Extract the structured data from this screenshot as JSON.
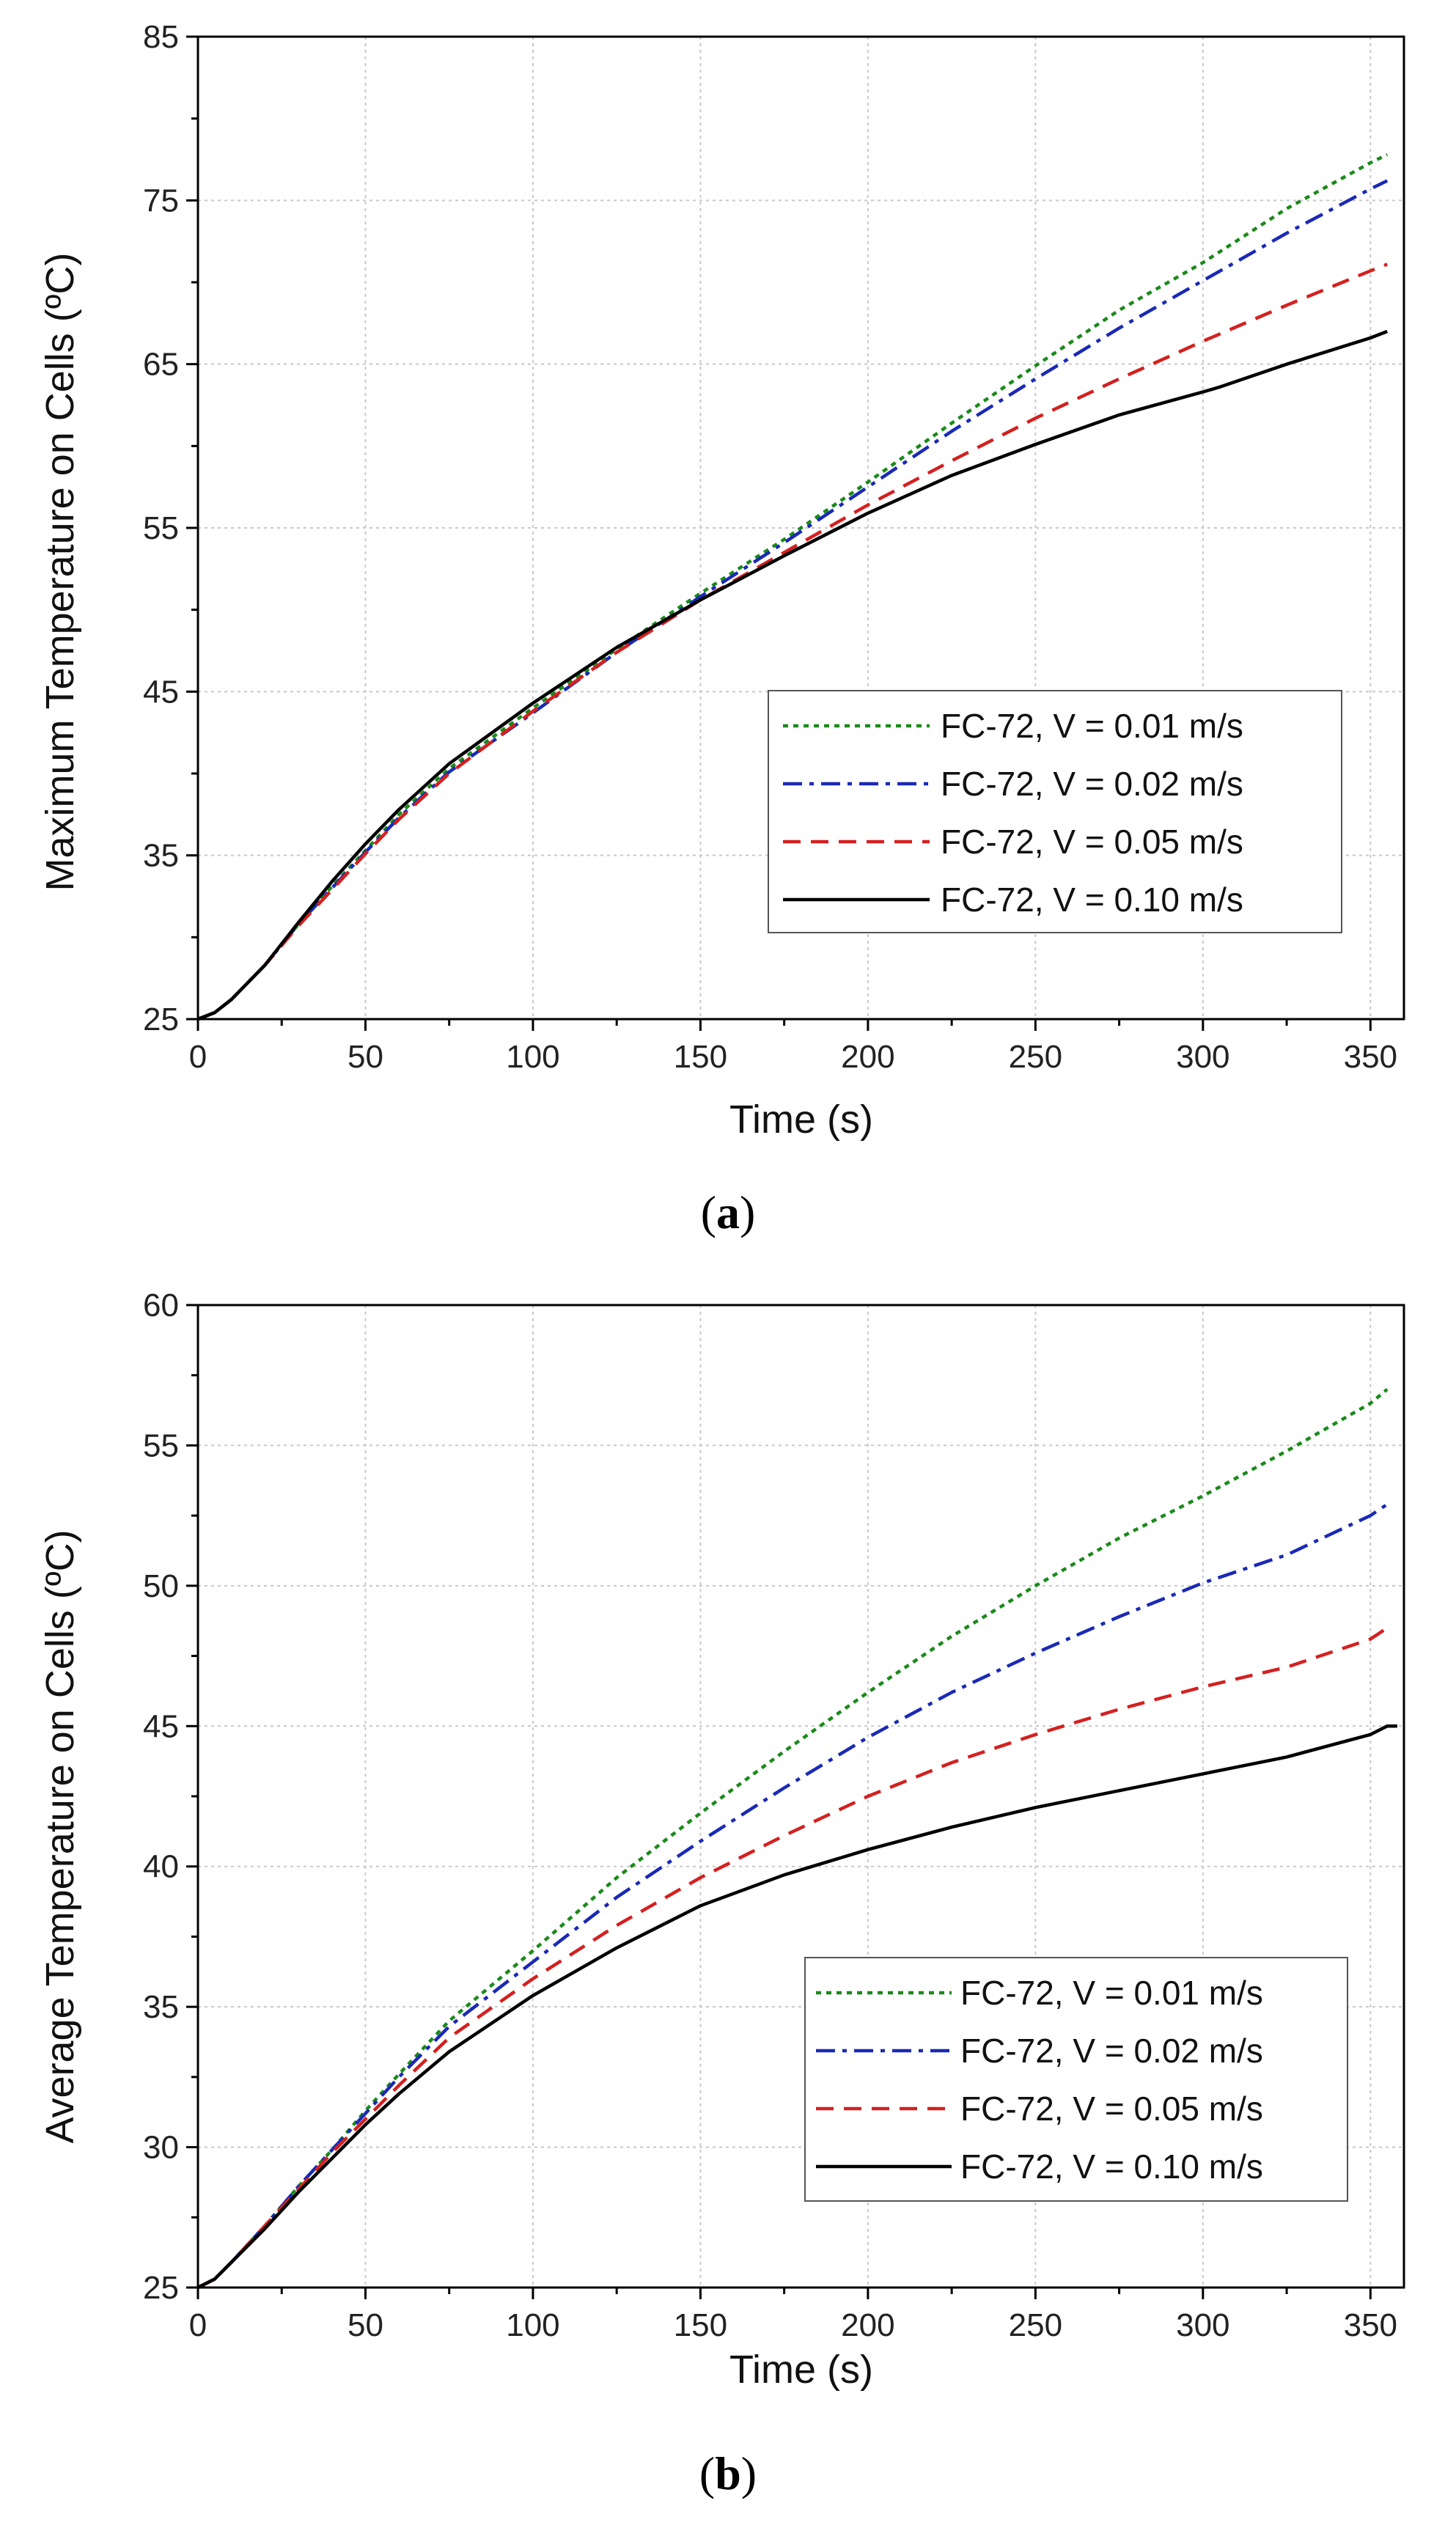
{
  "chart_data": [
    {
      "type": "line",
      "panel_label": "a",
      "xlabel": "Time (s)",
      "ylabel": "Maximum Temperature on Cells (ºC)",
      "xlim": [
        0,
        360
      ],
      "ylim": [
        25,
        85
      ],
      "xticks": [
        0,
        50,
        100,
        150,
        200,
        250,
        300,
        350
      ],
      "yticks": [
        25,
        35,
        45,
        55,
        65,
        75,
        85
      ],
      "grid": true,
      "legend_position": "lower-right",
      "series": [
        {
          "name": "FC-72, V = 0.01 m/s",
          "color": "#1a8a1a",
          "dash": "dotted",
          "x": [
            0,
            5,
            10,
            20,
            30,
            40,
            50,
            60,
            75,
            100,
            125,
            150,
            175,
            200,
            225,
            250,
            275,
            300,
            325,
            350,
            355
          ],
          "y": [
            25,
            25.4,
            26.2,
            28.3,
            30.8,
            33.1,
            35.3,
            37.5,
            40.3,
            44,
            47.6,
            51,
            54.3,
            57.8,
            61.4,
            64.9,
            68.3,
            71.2,
            74.5,
            77.3,
            77.8
          ]
        },
        {
          "name": "FC-72, V = 0.02 m/s",
          "color": "#1a2ab5",
          "dash": "dashdot",
          "x": [
            0,
            5,
            10,
            20,
            30,
            40,
            50,
            60,
            75,
            100,
            125,
            150,
            175,
            200,
            225,
            250,
            275,
            300,
            325,
            350,
            355
          ],
          "y": [
            25,
            25.4,
            26.2,
            28.3,
            30.8,
            33,
            35.2,
            37.3,
            40.1,
            43.7,
            47.4,
            50.8,
            54.1,
            57.5,
            60.9,
            64.1,
            67.2,
            70.1,
            73,
            75.7,
            76.2
          ]
        },
        {
          "name": "FC-72, V = 0.05 m/s",
          "color": "#d42020",
          "dash": "dashed",
          "x": [
            0,
            5,
            10,
            20,
            30,
            40,
            50,
            60,
            75,
            100,
            125,
            150,
            175,
            200,
            225,
            250,
            275,
            300,
            325,
            350,
            355
          ],
          "y": [
            25,
            25.4,
            26.2,
            28.3,
            30.7,
            32.9,
            35.1,
            37.2,
            40,
            43.8,
            47.4,
            50.6,
            53.5,
            56.4,
            59.1,
            61.7,
            64.1,
            66.4,
            68.6,
            70.7,
            71.1
          ]
        },
        {
          "name": "FC-72, V = 0.10 m/s",
          "color": "#000000",
          "dash": "solid",
          "x": [
            0,
            5,
            10,
            20,
            30,
            40,
            50,
            60,
            75,
            100,
            125,
            150,
            175,
            200,
            225,
            250,
            275,
            300,
            305,
            325,
            350,
            355
          ],
          "y": [
            25,
            25.4,
            26.2,
            28.3,
            30.9,
            33.4,
            35.7,
            37.8,
            40.6,
            44.3,
            47.7,
            50.6,
            53.3,
            55.9,
            58.2,
            60.1,
            61.9,
            63.3,
            63.6,
            65,
            66.6,
            67
          ]
        }
      ]
    },
    {
      "type": "line",
      "panel_label": "b",
      "xlabel": "Time (s)",
      "ylabel": "Average Temperature on Cells (ºC)",
      "xlim": [
        0,
        360
      ],
      "ylim": [
        25,
        60
      ],
      "xticks": [
        0,
        50,
        100,
        150,
        200,
        250,
        300,
        350
      ],
      "yticks": [
        25,
        30,
        35,
        40,
        45,
        50,
        55,
        60
      ],
      "grid": true,
      "legend_position": "lower-right",
      "series": [
        {
          "name": "FC-72, V = 0.01 m/s",
          "color": "#1a8a1a",
          "dash": "dotted",
          "x": [
            0,
            5,
            10,
            20,
            30,
            40,
            50,
            60,
            75,
            100,
            125,
            150,
            175,
            200,
            225,
            250,
            275,
            300,
            325,
            350,
            355
          ],
          "y": [
            25,
            25.3,
            25.9,
            27.2,
            28.6,
            29.9,
            31.3,
            32.6,
            34.5,
            37,
            39.6,
            41.9,
            44.1,
            46.2,
            48.2,
            50,
            51.7,
            53.2,
            54.8,
            56.5,
            57
          ]
        },
        {
          "name": "FC-72, V = 0.02 m/s",
          "color": "#1a2ab5",
          "dash": "dashdot",
          "x": [
            0,
            5,
            10,
            20,
            30,
            40,
            50,
            60,
            75,
            100,
            125,
            150,
            175,
            200,
            225,
            250,
            275,
            300,
            325,
            350,
            355
          ],
          "y": [
            25,
            25.3,
            25.9,
            27.2,
            28.6,
            29.9,
            31.2,
            32.5,
            34.3,
            36.6,
            38.9,
            40.9,
            42.8,
            44.6,
            46.2,
            47.6,
            48.9,
            50.1,
            51.1,
            52.5,
            52.9
          ]
        },
        {
          "name": "FC-72, V = 0.05 m/s",
          "color": "#d42020",
          "dash": "dashed",
          "x": [
            0,
            5,
            10,
            20,
            30,
            40,
            50,
            60,
            75,
            100,
            125,
            150,
            175,
            200,
            225,
            250,
            275,
            300,
            325,
            350,
            355
          ],
          "y": [
            25,
            25.3,
            25.9,
            27.2,
            28.5,
            29.8,
            31,
            32.2,
            33.9,
            36,
            37.9,
            39.6,
            41.1,
            42.5,
            43.7,
            44.7,
            45.6,
            46.4,
            47.1,
            48.1,
            48.5
          ]
        },
        {
          "name": "FC-72, V = 0.10 m/s",
          "color": "#000000",
          "dash": "solid",
          "x": [
            0,
            5,
            10,
            20,
            30,
            40,
            50,
            60,
            75,
            100,
            125,
            150,
            175,
            200,
            225,
            250,
            275,
            300,
            325,
            350,
            355,
            358
          ],
          "y": [
            25,
            25.3,
            25.9,
            27.1,
            28.4,
            29.6,
            30.8,
            31.9,
            33.4,
            35.4,
            37.1,
            38.6,
            39.7,
            40.6,
            41.4,
            42.1,
            42.7,
            43.3,
            43.9,
            44.7,
            45,
            45
          ]
        }
      ]
    }
  ]
}
